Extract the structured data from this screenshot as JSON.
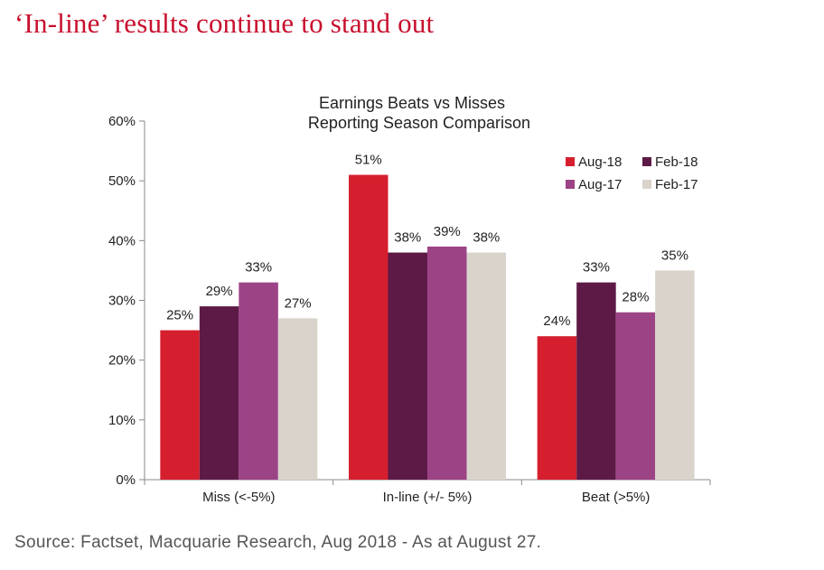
{
  "headline": "‘In-line’ results continue to stand out",
  "source": "Source: Factset, Macquarie Research, Aug 2018 - As at August 27.",
  "colors": {
    "headline": "#c8102e",
    "axis": "#888888",
    "text": "#222222"
  },
  "chart_data": {
    "type": "bar",
    "title": "Earnings Beats vs Misses",
    "subtitle": "Reporting Season Comparison",
    "categories": [
      "Miss (<-5%)",
      "In-line (+/- 5%)",
      "Beat (>5%)"
    ],
    "series": [
      {
        "name": "Aug-18",
        "color": "#d51f2e",
        "values": [
          25,
          51,
          24
        ]
      },
      {
        "name": "Feb-18",
        "color": "#5e1a47",
        "values": [
          29,
          38,
          33
        ]
      },
      {
        "name": "Aug-17",
        "color": "#9c4386",
        "values": [
          33,
          39,
          28
        ]
      },
      {
        "name": "Feb-17",
        "color": "#d9d3cc",
        "values": [
          27,
          38,
          35
        ]
      }
    ],
    "value_labels": [
      [
        "25%",
        "51%",
        "24%"
      ],
      [
        "29%",
        "38%",
        "33%"
      ],
      [
        "33%",
        "39%",
        "28%"
      ],
      [
        "27%",
        "38%",
        "35%"
      ]
    ],
    "ylim": [
      0,
      60
    ],
    "yticks": [
      0,
      10,
      20,
      30,
      40,
      50,
      60
    ],
    "ytick_labels": [
      "0%",
      "10%",
      "20%",
      "30%",
      "40%",
      "50%",
      "60%"
    ],
    "xlabel": "",
    "ylabel": "",
    "grid": false,
    "legend_position": "top-right"
  }
}
